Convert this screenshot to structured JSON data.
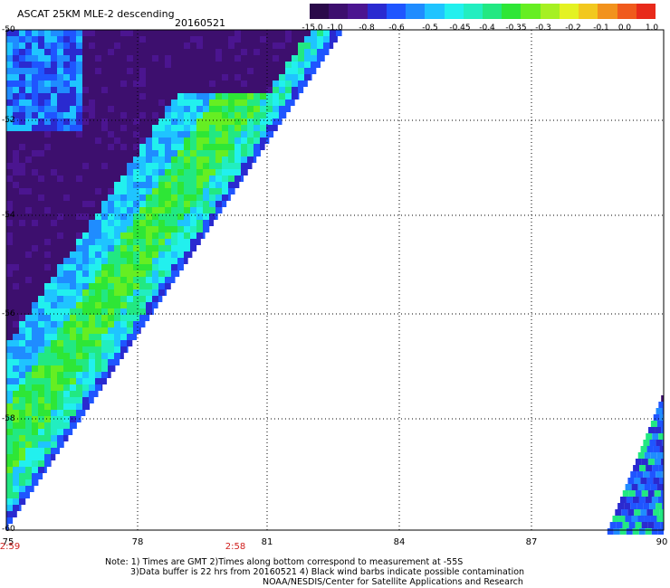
{
  "header": {
    "title": "ASCAT 25KM MLE-2 descending",
    "date": "20160521"
  },
  "colorbar": {
    "colors": [
      "#2a0a4a",
      "#3d0f6e",
      "#4b1590",
      "#2a2ad0",
      "#1f55ff",
      "#1f8cff",
      "#1fc4ff",
      "#22f0ee",
      "#22eec0",
      "#22e882",
      "#2ee636",
      "#66ee22",
      "#a6f022",
      "#e4f222",
      "#f2c81e",
      "#f2921c",
      "#f05a1c",
      "#e82a1a"
    ],
    "tick_labels": [
      "-15.0",
      "-1.0",
      "-0.8",
      "-0.6",
      "-0.5",
      "-0.45",
      "-0.4",
      "-0.35",
      "-0.3",
      "-0.2",
      "-0.1",
      "0.0",
      "1.0"
    ]
  },
  "axes": {
    "lat_labels": [
      "-50",
      "-52",
      "-54",
      "-56",
      "-58",
      "-60"
    ],
    "lon_labels": [
      "75",
      "78",
      "81",
      "84",
      "87",
      "90"
    ],
    "time_labels": [
      "2:59",
      "2:58"
    ]
  },
  "footer": {
    "line1": "Note: 1) Times are GMT 2)Times along bottom correspond to measurement at -55S",
    "line2": "3)Data buffer is 22 hrs from 20160521 4) Black wind barbs indicate possible contamination",
    "line3": "NOAA/NESDIS/Center for Satellite Applications and Research"
  }
}
